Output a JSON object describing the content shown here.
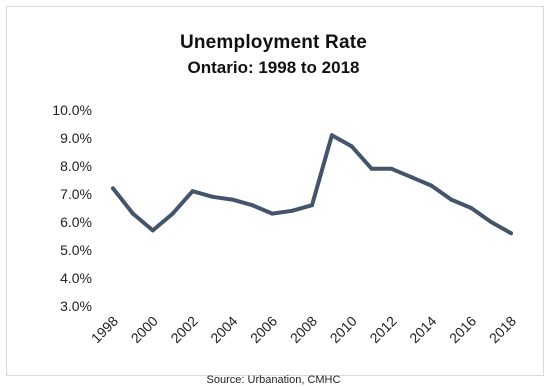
{
  "chart_data": {
    "type": "line",
    "title": "Unemployment Rate",
    "subtitle": "Ontario:  1998 to 2018",
    "xlabel": "",
    "ylabel": "",
    "source": "Source: Urbanation, CMHC",
    "x": [
      1998,
      1999,
      2000,
      2001,
      2002,
      2003,
      2004,
      2005,
      2006,
      2007,
      2008,
      2009,
      2010,
      2011,
      2012,
      2013,
      2014,
      2015,
      2016,
      2017,
      2018
    ],
    "series": [
      {
        "values": [
          7.2,
          6.3,
          5.7,
          6.3,
          7.1,
          6.9,
          6.8,
          6.6,
          6.3,
          6.4,
          6.6,
          9.1,
          8.7,
          7.9,
          7.9,
          7.6,
          7.3,
          6.8,
          6.5,
          6.0,
          5.6
        ],
        "color": "#44546a"
      }
    ],
    "xticks": [
      "1998",
      "2000",
      "2002",
      "2004",
      "2006",
      "2008",
      "2010",
      "2012",
      "2014",
      "2016",
      "2018"
    ],
    "yticks": [
      "3.0%",
      "4.0%",
      "5.0%",
      "6.0%",
      "7.0%",
      "8.0%",
      "9.0%",
      "10.0%"
    ],
    "ylim": [
      3.0,
      10.0
    ],
    "grid": false,
    "legend": "none"
  }
}
